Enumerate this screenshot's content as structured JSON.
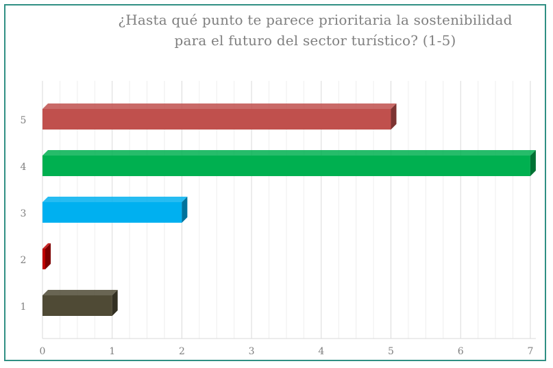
{
  "chart_data": {
    "type": "bar",
    "orientation": "horizontal",
    "title_lines": [
      "¿Hasta qué punto te parece prioritaria la sostenibilidad",
      "para el futuro del sector turístico? (1-5)"
    ],
    "categories": [
      "1",
      "2",
      "3",
      "4",
      "5"
    ],
    "values": [
      1,
      0,
      2,
      7,
      5
    ],
    "colors": [
      "#4f4a35",
      "#c00000",
      "#00b0f0",
      "#00b050",
      "#c0504d"
    ],
    "xlim": [
      0,
      7
    ],
    "x_ticks": [
      "0",
      "1",
      "2",
      "3",
      "4",
      "5",
      "6",
      "7"
    ],
    "grid": true,
    "legend": "none"
  }
}
